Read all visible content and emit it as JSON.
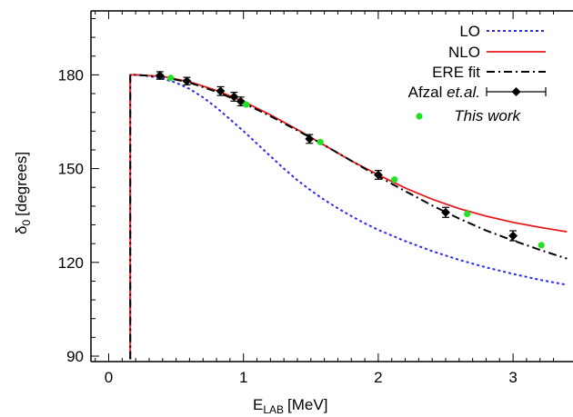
{
  "chart_data": {
    "type": "line",
    "xlabel": "E",
    "xlabel_sub": "LAB",
    "xlabel_unit": "[MeV]",
    "ylabel": "δ",
    "ylabel_sub": "0",
    "ylabel_unit": "[degrees]",
    "xlim": [
      -0.15,
      3.4
    ],
    "ylim": [
      89,
      200
    ],
    "x_ticks": [
      0,
      1,
      2,
      3
    ],
    "x_tick_labels": [
      "0",
      "1",
      "2",
      "3"
    ],
    "y_ticks": [
      90,
      120,
      150,
      180
    ],
    "y_tick_labels": [
      "90",
      "120",
      "150",
      "180"
    ],
    "legend_position": "top-right",
    "series": [
      {
        "name": "LO",
        "style": "dotted",
        "color": "#2b2bf0",
        "x": [
          0.16,
          0.16,
          0.2,
          0.3,
          0.4,
          0.5,
          0.6,
          0.7,
          0.8,
          0.9,
          1.0,
          1.1,
          1.2,
          1.3,
          1.4,
          1.5,
          1.6,
          1.7,
          1.8,
          1.9,
          2.0,
          2.2,
          2.4,
          2.6,
          2.8,
          3.0,
          3.2,
          3.4
        ],
        "y": [
          89,
          180,
          180,
          179.6,
          178.8,
          177.5,
          175.5,
          172.8,
          169.5,
          165.8,
          162,
          158,
          154,
          150,
          146.3,
          143,
          140,
          137.3,
          134.8,
          132.5,
          130.4,
          126.8,
          123.6,
          120.8,
          118.4,
          116.3,
          114.4,
          112.8
        ]
      },
      {
        "name": "NLO",
        "style": "solid",
        "color": "#e81c1c",
        "x": [
          0.16,
          0.16,
          0.2,
          0.4,
          0.6,
          0.8,
          1.0,
          1.2,
          1.4,
          1.6,
          1.8,
          2.0,
          2.2,
          2.4,
          2.6,
          2.8,
          3.0,
          3.2,
          3.4
        ],
        "y": [
          89,
          180,
          180,
          179.5,
          177.8,
          175,
          171.5,
          167.2,
          162.5,
          157.5,
          152.5,
          148,
          143.8,
          140.2,
          137.2,
          134.8,
          132.8,
          131.2,
          129.8
        ]
      },
      {
        "name": "ERE fit",
        "style": "dashdot",
        "color": "#000000",
        "x": [
          0.16,
          0.16,
          0.2,
          0.4,
          0.6,
          0.8,
          1.0,
          1.2,
          1.4,
          1.6,
          1.8,
          2.0,
          2.2,
          2.4,
          2.6,
          2.8,
          3.0,
          3.2,
          3.4
        ],
        "y": [
          89,
          180,
          180,
          179.4,
          177.5,
          174.6,
          171,
          166.8,
          162.2,
          157.5,
          152.5,
          147.5,
          142.8,
          138.2,
          134,
          130.2,
          127,
          124,
          121.2
        ]
      },
      {
        "name": "Afzal et.al.",
        "name_main": "Afzal ",
        "name_italic": "et.al.",
        "style": "points-errorbars",
        "color": "#000000",
        "x": [
          0.38,
          0.58,
          0.83,
          0.93,
          0.98,
          1.49,
          2.0,
          2.5,
          3.0
        ],
        "y": [
          179.8,
          178,
          174.8,
          173,
          171.5,
          159.5,
          148,
          136,
          128.5
        ],
        "yerr": [
          1.2,
          1.2,
          1.4,
          1.4,
          1.4,
          1.4,
          1.4,
          1.6,
          1.6
        ]
      },
      {
        "name": "This work",
        "style": "points",
        "color": "#22e022",
        "x": [
          0.46,
          1.02,
          1.57,
          2.12,
          2.66,
          3.21
        ],
        "y": [
          179,
          170.5,
          158.5,
          146.5,
          135.5,
          125.5
        ]
      }
    ]
  }
}
